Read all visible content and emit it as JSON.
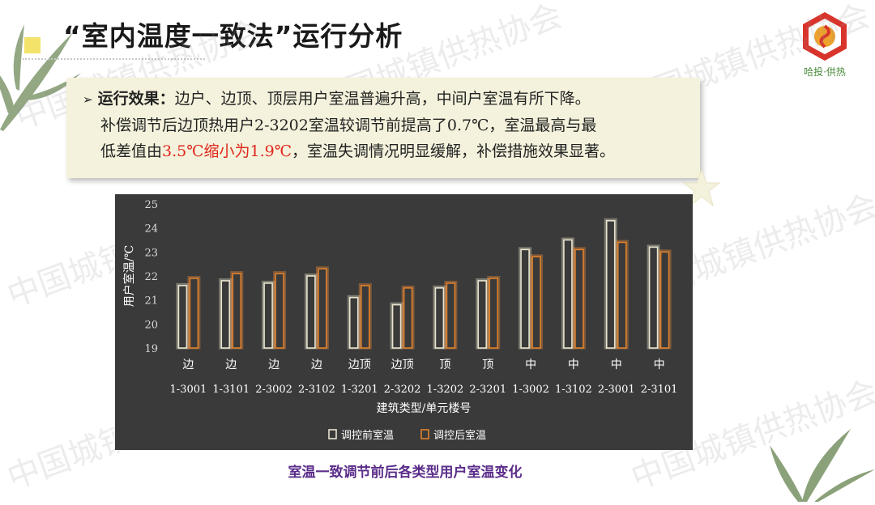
{
  "title": "“室内温度一致法”运行分析",
  "logo": {
    "text": "哈投·供热",
    "icon": "company-logo-icon"
  },
  "note": {
    "lead": "运行效果：",
    "line1_rest": "边户、边顶、顶层用户室温普遍升高，中间户室温有所下降。",
    "line2": "补偿调节后边顶热用户2-3202室温较调节前提高了0.7℃，室温最高与最",
    "line3_pre": "低差值由",
    "line3_red": "3.5℃缩小为1.9℃",
    "line3_post": "，室温失调情况明显缓解，补偿措施效果显著。"
  },
  "watermark": "中国城镇供热协会",
  "caption": "室温一致调节前后各类型用户室温变化",
  "colors": {
    "before": "#e8e4cf",
    "after": "#e0822c",
    "panel": "#3a3a3a",
    "note_bg": "#f4f2dc",
    "caption": "#5b2d8a"
  },
  "chart_data": {
    "type": "bar",
    "categories": [
      "边",
      "边",
      "边",
      "边",
      "边顶",
      "边顶",
      "顶",
      "顶",
      "中",
      "中",
      "中",
      "中"
    ],
    "sub_categories": [
      "1-3001",
      "1-3101",
      "2-3002",
      "2-3102",
      "1-3201",
      "2-3202",
      "1-3202",
      "2-3201",
      "1-3002",
      "1-3102",
      "2-3001",
      "2-3101"
    ],
    "series": [
      {
        "name": "调控前室温",
        "values": [
          21.6,
          21.8,
          21.7,
          22.0,
          21.1,
          20.8,
          21.5,
          21.8,
          23.1,
          23.5,
          24.3,
          23.2
        ]
      },
      {
        "name": "调控后室温",
        "values": [
          21.9,
          22.1,
          22.1,
          22.3,
          21.6,
          21.5,
          21.7,
          21.9,
          22.8,
          23.1,
          23.4,
          23.0
        ]
      }
    ],
    "ylabel": "用户室温/℃",
    "xlabel": "建筑类型/单元楼号",
    "ylim": [
      19,
      25
    ],
    "yticks": [
      "19",
      "20",
      "21",
      "22",
      "23",
      "24",
      "25"
    ],
    "grid": false,
    "legend": "bottom"
  }
}
